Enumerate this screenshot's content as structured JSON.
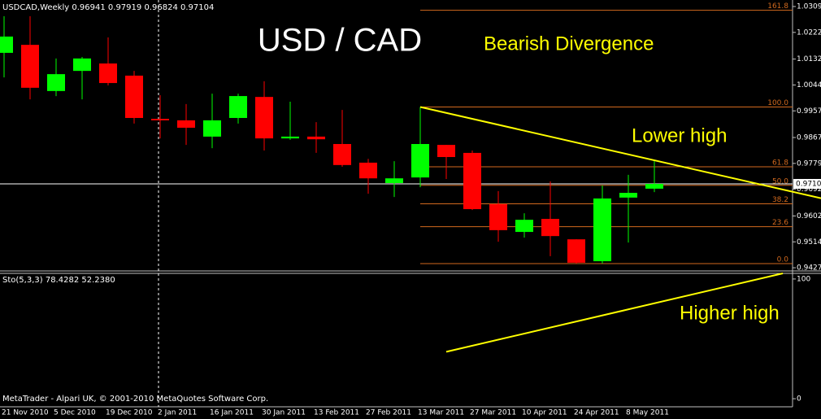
{
  "chart_data": [
    {
      "type": "candlestick",
      "symbol": "USDCAD,Weekly",
      "title": "USD / CAD",
      "annotations": [
        "Bearish Divergence",
        "Lower high"
      ],
      "categories": [
        "21 Nov 2010",
        null,
        "5 Dec 2010",
        null,
        "19 Dec 2010",
        null,
        "2 Jan 2011",
        null,
        "16 Jan 2011",
        null,
        "30 Jan 2011",
        null,
        "13 Feb 2011",
        null,
        "27 Feb 2011",
        null,
        "13 Mar 2011",
        null,
        "27 Mar 2011",
        null,
        "10 Apr 2011",
        null,
        "24 Apr 2011",
        null,
        "8 May 2011",
        null
      ],
      "open": [
        1.0153,
        1.018,
        1.0024,
        1.0092,
        1.0117,
        1.0076,
        0.993,
        0.9925,
        0.987,
        0.9933,
        1.0004,
        0.9864,
        0.987,
        0.9845,
        0.9782,
        0.9713,
        0.9732,
        0.9842,
        0.9815,
        0.9642,
        0.9548,
        0.9592,
        0.9523,
        0.9449,
        0.9664,
        0.96941
      ],
      "high": [
        1.0277,
        1.0277,
        1.0134,
        1.0139,
        1.0205,
        1.0092,
        1.001,
        0.998,
        1.0015,
        1.0015,
        1.0057,
        0.9988,
        0.9919,
        0.996,
        0.9795,
        0.9787,
        0.997,
        0.9842,
        0.9823,
        0.9686,
        0.9611,
        0.9719,
        0.9523,
        0.9705,
        0.9741,
        0.97919
      ],
      "low": [
        1.007,
        0.9996,
        1.0007,
        0.9996,
        1.0043,
        0.9914,
        0.9864,
        0.9842,
        0.9831,
        0.9914,
        0.9823,
        0.9859,
        0.9815,
        0.9768,
        0.9677,
        0.9666,
        0.9699,
        0.9727,
        0.9622,
        0.9515,
        0.9529,
        0.9466,
        0.9441,
        0.9441,
        0.9512,
        0.96824
      ],
      "close": [
        1.0208,
        1.0035,
        1.0081,
        1.0134,
        1.0051,
        0.9933,
        0.9925,
        0.99,
        0.9925,
        1.0007,
        0.9864,
        0.987,
        0.9861,
        0.9774,
        0.9729,
        0.9729,
        0.9845,
        0.9801,
        0.9625,
        0.9554,
        0.9589,
        0.9534,
        0.9444,
        0.9661,
        0.968,
        0.97104
      ],
      "up_color": "#00ff00",
      "down_color": "#ff0000",
      "ylim": [
        0.9419,
        1.0326
      ],
      "yticks": [
        1.03095,
        {
          "value": 1.0222,
          "label": "1.02220"
        },
        {
          "value": 1.0132,
          "label": "1.01320"
        },
        1.00445,
        {
          "value": 0.9957,
          "label": "0.99570"
        },
        {
          "value": 0.9867,
          "label": "0.98670"
        },
        0.97795,
        {
          "value": 0.9692,
          "label": "0.96920"
        },
        {
          "value": 0.9602,
          "label": "0.96020"
        },
        0.95145,
        {
          "value": 0.9427,
          "label": "0.94270"
        }
      ],
      "fibonacci": {
        "low": 0.9441,
        "high": 0.997,
        "color": "#d2691e",
        "levels": [
          {
            "value": 0,
            "label": "0.0"
          },
          23.6,
          38.2,
          {
            "value": 50,
            "label": "50.0"
          },
          61.8,
          {
            "value": 100,
            "label": "100.0"
          },
          161.8
        ]
      },
      "trendline": {
        "points": [
          [
            16,
            0.997
          ],
          [
            25,
            0.979
          ]
        ],
        "color": "#ffff00"
      }
    },
    {
      "type": "line",
      "title": "Sto(5,3,3)",
      "annotations": [
        "Higher high"
      ],
      "caption": "MetaTrader - Alpari UK, © 2001-2010 MetaQuotes Software Corp.",
      "series": [
        {
          "color": "#20b2aa",
          "values": [
            48.6,
            44.6,
            40.5,
            37.2,
            30.4,
            20.3,
            10.1,
            12.2,
            16.9,
            30.4,
            33.8,
            33.8,
            15.5,
            13.5,
            9.5,
            8.1,
            23.6,
            39.2,
            33.8,
            13.5,
            3.4,
            8.1,
            8.1,
            20.3,
            47.3,
            78.4282
          ]
        },
        {
          "color": "#ff0000",
          "values": [
            47.3,
            40.5,
            43.9,
            38.5,
            35.1,
            27.0,
            18.9,
            12.2,
            12.2,
            21.6,
            27.0,
            32.4,
            28.4,
            21.6,
            16.9,
            13.5,
            18.9,
            28.4,
            33.8,
            23.6,
            12.2,
            8.1,
            6.8,
            13.5,
            28.4,
            52.238
          ],
          "value_labels": [
            null,
            null,
            null,
            null,
            null,
            null,
            null,
            null,
            null,
            null,
            null,
            null,
            null,
            null,
            null,
            null,
            null,
            null,
            null,
            null,
            null,
            null,
            null,
            null,
            null,
            "52.2380"
          ]
        }
      ],
      "ylim": [
        -5.4,
        104.7
      ],
      "yticks": [
        0,
        100
      ],
      "trendline": {
        "points": [
          [
            17,
            39.2
          ],
          [
            25,
            79.7
          ]
        ],
        "color": "#ffff00"
      }
    }
  ]
}
